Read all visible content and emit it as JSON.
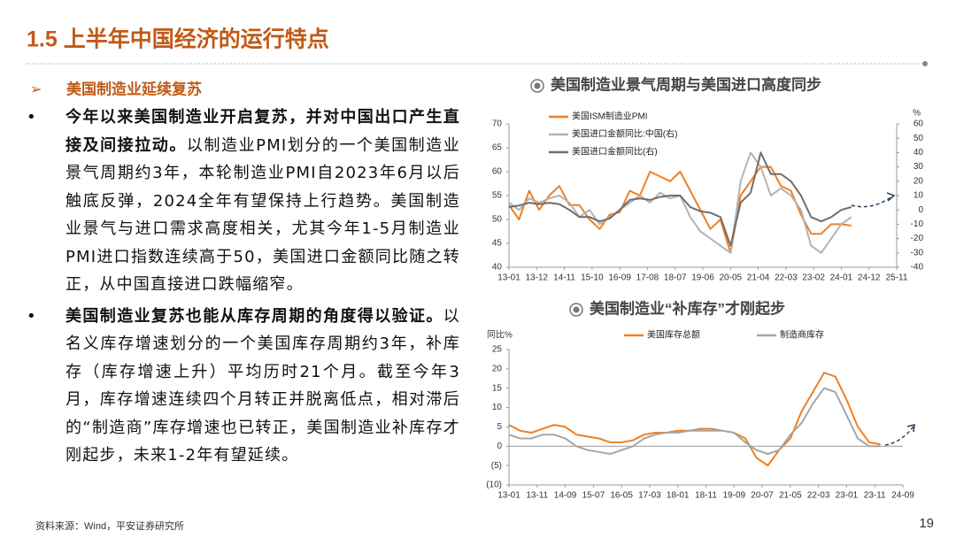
{
  "header": {
    "title": "1.5 上半年中国经济的运行特点"
  },
  "section": "美国制造业延续复苏",
  "bullets": [
    {
      "bold": "今年以来美国制造业开启复苏，并对中国出口产生直接及间接拉动。",
      "text": "以制造业PMI划分的一个美国制造业景气周期约3年，本轮制造业PMI自2023年6月以后触底反弹，2024全年有望保持上行趋势。美国制造业景气与进口需求高度相关，尤其今年1-5月制造业PMI进口指数连续高于50，美国进口金额同比随之转正，从中国直接进口跌幅缩窄。"
    },
    {
      "bold": "美国制造业复苏也能从库存周期的角度得以验证。",
      "text": "以名义库存增速划分的一个美国库存周期约3年，补库存（库存增速上升）平均历时21个月。截至今年3月，库存增速连续四个月转正并脱离低点，相对滞后的“制造商”库存增速也已转正，美国制造业补库存才刚起步，未来1-2年有望延续。"
    }
  ],
  "footer": {
    "source": "资料来源：Wind，平安证券研究所",
    "page": "19"
  },
  "chart_data": [
    {
      "type": "line",
      "title": "美国制造业景气周期与美国进口高度同步",
      "x": [
        0,
        4,
        8,
        12,
        16,
        20,
        24,
        28,
        32,
        36,
        40,
        44,
        48,
        52,
        56,
        60,
        64,
        68,
        72,
        76,
        80,
        84,
        88,
        92,
        96,
        100,
        104,
        108,
        112,
        116,
        120,
        124,
        128,
        132,
        136
      ],
      "xlim": [
        0,
        154
      ],
      "xticks": [
        {
          "value": 0,
          "label": "13-01"
        },
        {
          "value": 11,
          "label": "13-12"
        },
        {
          "value": 22,
          "label": "14-11"
        },
        {
          "value": 33,
          "label": "15-10"
        },
        {
          "value": 44,
          "label": "16-09"
        },
        {
          "value": 55,
          "label": "17-08"
        },
        {
          "value": 66,
          "label": "18-07"
        },
        {
          "value": 77,
          "label": "19-06"
        },
        {
          "value": 88,
          "label": "20-05"
        },
        {
          "value": 99,
          "label": "21-04"
        },
        {
          "value": 110,
          "label": "22-03"
        },
        {
          "value": 121,
          "label": "23-02"
        },
        {
          "value": 132,
          "label": "24-01"
        },
        {
          "value": 143,
          "label": "24-12"
        },
        {
          "value": 154,
          "label": "25-11"
        }
      ],
      "ylim": [
        40,
        70
      ],
      "yticks": [
        40,
        45,
        50,
        55,
        60,
        65,
        70
      ],
      "y2lim": [
        -40,
        60
      ],
      "y2ticks": [
        -40,
        -30,
        -20,
        -10,
        0,
        10,
        20,
        30,
        40,
        50,
        60
      ],
      "y2label": "%",
      "legend": "upper left",
      "series": [
        {
          "name": "美国ISM制造业PMI",
          "color": "#f07f23",
          "values": [
            53,
            50,
            56,
            52,
            55,
            57,
            53,
            53,
            50,
            48,
            51,
            51.5,
            56,
            55,
            60,
            59,
            58,
            60,
            56,
            52,
            48,
            50,
            43,
            55,
            58,
            61,
            61,
            57,
            56,
            51,
            47,
            47,
            49,
            49,
            48.7
          ]
        },
        {
          "name": "美国进口金额同比:中国(右)",
          "color": "#b3b3b3",
          "axis": "y2",
          "values": [
            5,
            0,
            8,
            5,
            8,
            10,
            5,
            -5,
            0,
            -10,
            -5,
            0,
            5,
            10,
            5,
            12,
            8,
            10,
            -5,
            -15,
            -20,
            -25,
            -30,
            20,
            40,
            30,
            10,
            15,
            10,
            0,
            -25,
            -30,
            -20,
            -10,
            -5
          ]
        },
        {
          "name": "美国进口金额同比(右)",
          "color": "#6e6e6e",
          "axis": "y2",
          "values": [
            2,
            3,
            5,
            4,
            5,
            4,
            0,
            -5,
            -5,
            -8,
            -6,
            0,
            7,
            8,
            7,
            9,
            10,
            10,
            2,
            -1,
            -2,
            -5,
            -25,
            5,
            12,
            40,
            25,
            25,
            20,
            10,
            -5,
            -8,
            -5,
            0,
            2
          ]
        }
      ]
    },
    {
      "type": "line",
      "title": "美国制造业“补库存”才刚起步",
      "x": [
        0,
        4,
        8,
        12,
        16,
        20,
        24,
        28,
        32,
        36,
        40,
        44,
        48,
        52,
        56,
        60,
        64,
        68,
        72,
        76,
        80,
        84,
        88,
        92,
        96,
        100,
        104,
        108,
        112,
        116,
        120,
        124,
        128,
        132
      ],
      "xlim": [
        0,
        140
      ],
      "xticks": [
        {
          "value": 0,
          "label": "13-01"
        },
        {
          "value": 10,
          "label": "13-11"
        },
        {
          "value": 20,
          "label": "14-09"
        },
        {
          "value": 30,
          "label": "15-07"
        },
        {
          "value": 40,
          "label": "16-05"
        },
        {
          "value": 50,
          "label": "17-03"
        },
        {
          "value": 60,
          "label": "18-01"
        },
        {
          "value": 70,
          "label": "18-11"
        },
        {
          "value": 80,
          "label": "19-09"
        },
        {
          "value": 90,
          "label": "20-07"
        },
        {
          "value": 100,
          "label": "21-05"
        },
        {
          "value": 110,
          "label": "22-03"
        },
        {
          "value": 120,
          "label": "23-01"
        },
        {
          "value": 130,
          "label": "23-11"
        },
        {
          "value": 140,
          "label": "24-09"
        }
      ],
      "ylim": [
        -10,
        25
      ],
      "yticks": [
        {
          "value": -10,
          "label": "(10)"
        },
        {
          "value": -5,
          "label": "(5)"
        },
        0,
        5,
        10,
        15,
        20,
        25
      ],
      "ylabel": "同比%",
      "legend": "upper center",
      "series": [
        {
          "name": "美国库存总额",
          "color": "#f07f23",
          "values": [
            5.5,
            4,
            3.5,
            4.5,
            5.5,
            5,
            3,
            2.5,
            2,
            1,
            1,
            1.5,
            3,
            3.5,
            3.5,
            4,
            4,
            4.5,
            4.5,
            4,
            3.5,
            2,
            -3,
            -5,
            -1,
            2,
            9,
            14,
            19,
            18,
            12,
            5,
            1,
            0.5
          ]
        },
        {
          "name": "制造商库存",
          "color": "#a6a6a6",
          "values": [
            3,
            2,
            2,
            3,
            3,
            2,
            0,
            -1,
            -1.5,
            -2,
            -1,
            0,
            2,
            3,
            3.5,
            3.5,
            4,
            4,
            4,
            4,
            3.5,
            1,
            -1,
            -2,
            -1,
            3,
            6,
            11,
            15,
            14,
            8,
            2,
            0,
            0
          ]
        }
      ]
    }
  ]
}
